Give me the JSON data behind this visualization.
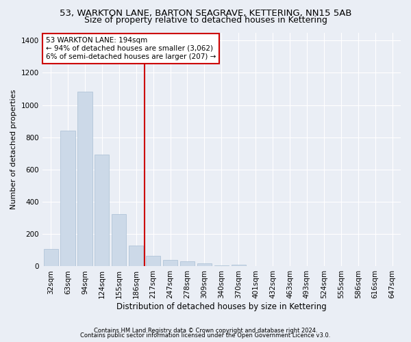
{
  "title1": "53, WARKTON LANE, BARTON SEAGRAVE, KETTERING, NN15 5AB",
  "title2": "Size of property relative to detached houses in Kettering",
  "xlabel": "Distribution of detached houses by size in Kettering",
  "ylabel": "Number of detached properties",
  "footnote1": "Contains HM Land Registry data © Crown copyright and database right 2024.",
  "footnote2": "Contains public sector information licensed under the Open Government Licence v3.0.",
  "annotation_line1": "53 WARKTON LANE: 194sqm",
  "annotation_line2": "← 94% of detached houses are smaller (3,062)",
  "annotation_line3": "6% of semi-detached houses are larger (207) →",
  "bar_color": "#ccd9e8",
  "bar_edgecolor": "#a8bfd4",
  "vline_color": "#cc0000",
  "vline_index": 5.5,
  "categories": [
    "32sqm",
    "63sqm",
    "94sqm",
    "124sqm",
    "155sqm",
    "186sqm",
    "217sqm",
    "247sqm",
    "278sqm",
    "309sqm",
    "340sqm",
    "370sqm",
    "401sqm",
    "432sqm",
    "463sqm",
    "493sqm",
    "524sqm",
    "555sqm",
    "586sqm",
    "616sqm",
    "647sqm"
  ],
  "values": [
    107,
    843,
    1082,
    693,
    325,
    128,
    65,
    38,
    30,
    18,
    8,
    10,
    0,
    0,
    0,
    0,
    0,
    0,
    0,
    0,
    0
  ],
  "ylim": [
    0,
    1450
  ],
  "yticks": [
    0,
    200,
    400,
    600,
    800,
    1000,
    1200,
    1400
  ],
  "background_color": "#eaeef5",
  "plot_background": "#eaeef5",
  "grid_color": "#ffffff",
  "title1_fontsize": 9.5,
  "title2_fontsize": 9,
  "xlabel_fontsize": 8.5,
  "ylabel_fontsize": 8,
  "tick_fontsize": 7.5,
  "annot_fontsize": 7.5
}
